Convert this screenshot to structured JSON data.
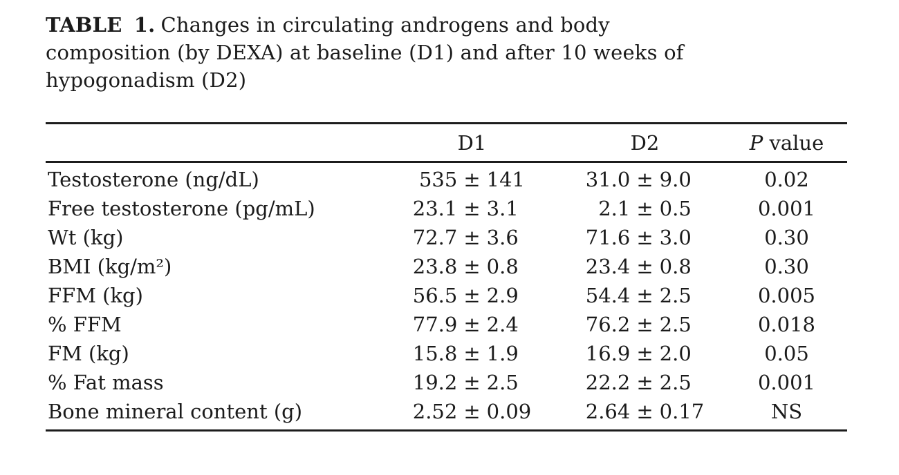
{
  "colors": {
    "background": "#ffffff",
    "text": "#1b1b1b",
    "rule": "#1c1c1c"
  },
  "caption": {
    "label": "TABLE 1.",
    "line1": "Changes in circulating androgens and body",
    "line2": "composition (by DEXA) at baseline (D1) and after 10 weeks of",
    "line3": "hypogonadism (D2)"
  },
  "chart_data": {
    "type": "table",
    "title": "TABLE 1. Changes in circulating androgens and body composition (by DEXA) at baseline (D1) and after 10 weeks of hypogonadism (D2)",
    "plus_minus": "±",
    "header": {
      "label": "",
      "d1": "D1",
      "d2": "D2",
      "p_symbol": "P",
      "p_text": "value"
    },
    "rows": [
      {
        "label": "Testosterone (ng/dL)",
        "d1_mean": "535",
        "d1_sd": "141",
        "d2_mean": "31.0",
        "d2_sd": "9.0",
        "p": "0.02"
      },
      {
        "label": "Free testosterone (pg/mL)",
        "d1_mean": "23.1",
        "d1_sd": "3.1",
        "d2_mean": "2.1",
        "d2_sd": "0.5",
        "p": "0.001"
      },
      {
        "label": "Wt (kg)",
        "d1_mean": "72.7",
        "d1_sd": "3.6",
        "d2_mean": "71.6",
        "d2_sd": "3.0",
        "p": "0.30"
      },
      {
        "label": "BMI (kg/m²)",
        "d1_mean": "23.8",
        "d1_sd": "0.8",
        "d2_mean": "23.4",
        "d2_sd": "0.8",
        "p": "0.30"
      },
      {
        "label": "FFM (kg)",
        "d1_mean": "56.5",
        "d1_sd": "2.9",
        "d2_mean": "54.4",
        "d2_sd": "2.5",
        "p": "0.005"
      },
      {
        "label": "% FFM",
        "d1_mean": "77.9",
        "d1_sd": "2.4",
        "d2_mean": "76.2",
        "d2_sd": "2.5",
        "p": "0.018"
      },
      {
        "label": "FM (kg)",
        "d1_mean": "15.8",
        "d1_sd": "1.9",
        "d2_mean": "16.9",
        "d2_sd": "2.0",
        "p": "0.05"
      },
      {
        "label": "% Fat mass",
        "d1_mean": "19.2",
        "d1_sd": "2.5",
        "d2_mean": "22.2",
        "d2_sd": "2.5",
        "p": "0.001"
      },
      {
        "label": "Bone mineral content (g)",
        "d1_mean": "2.52",
        "d1_sd": "0.09",
        "d2_mean": "2.64",
        "d2_sd": "0.17",
        "p": "NS"
      }
    ]
  }
}
